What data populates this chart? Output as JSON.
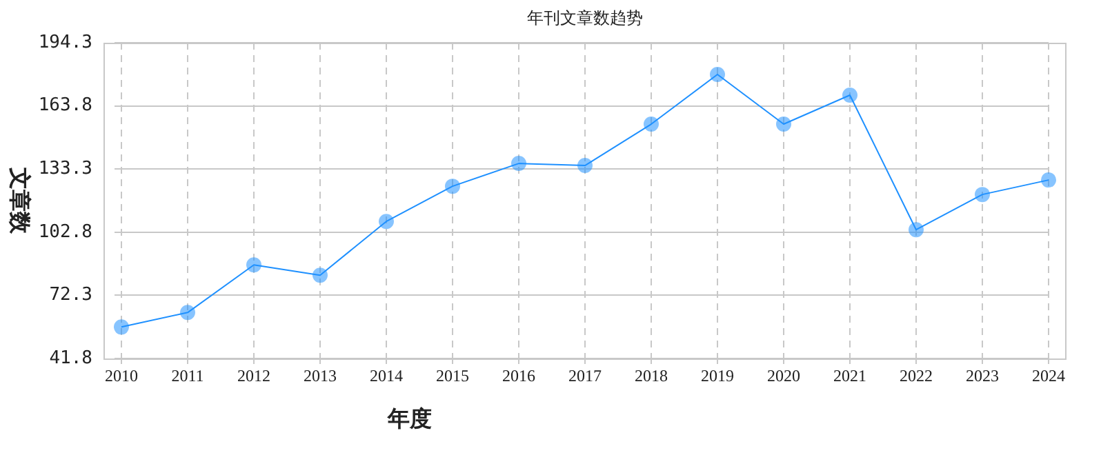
{
  "chart_data": {
    "type": "line",
    "title": "年刊文章数趋势",
    "xlabel": "年度",
    "ylabel": "文章数",
    "categories": [
      "2010",
      "2011",
      "2012",
      "2013",
      "2014",
      "2015",
      "2016",
      "2017",
      "2018",
      "2019",
      "2020",
      "2021",
      "2022",
      "2023",
      "2024"
    ],
    "series": [
      {
        "color": "#1e90ff",
        "values": [
          57,
          64,
          87,
          82,
          108,
          125,
          136,
          135,
          155,
          179,
          155,
          169,
          104,
          121,
          128
        ]
      }
    ],
    "ylim": [
      41.8,
      194.3
    ],
    "yticks": [
      41.8,
      72.3,
      102.8,
      133.3,
      163.8,
      194.3
    ],
    "grid": true,
    "legend": false,
    "marker": "circle",
    "line_style": "solid"
  }
}
